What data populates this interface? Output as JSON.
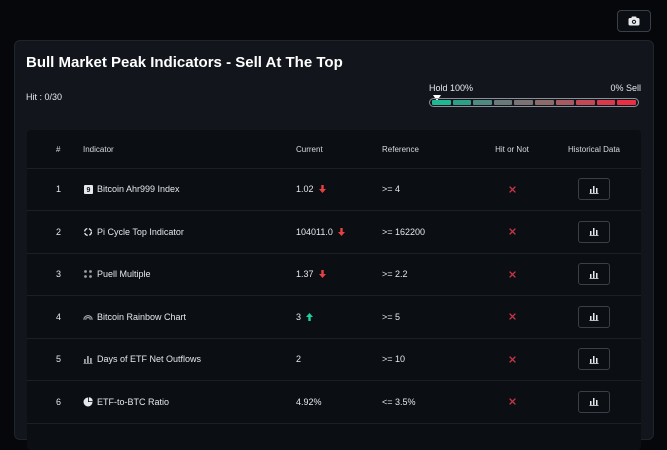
{
  "title": "Bull Market Peak Indicators - Sell At The Top",
  "hit_label": "Hit : 0/30",
  "meter": {
    "left_label": "Hold 100%",
    "right_label": "0% Sell",
    "position_fraction": 0.0,
    "segment_colors": [
      "#1fb892",
      "#2c9f86",
      "#4f8a80",
      "#6a7a7a",
      "#7b7373",
      "#8c6b6b",
      "#a65a62",
      "#c24856",
      "#d83a4b",
      "#ea2f44"
    ]
  },
  "colors": {
    "up": "#1fd1a1",
    "down": "#e84141",
    "hit_x": "#c23645"
  },
  "table": {
    "headers": {
      "num": "#",
      "indicator": "Indicator",
      "current": "Current",
      "reference": "Reference",
      "hit": "Hit or Not",
      "history": "Historical Data"
    },
    "rows": [
      {
        "num": "1",
        "icon": "ahr999-icon",
        "indicator": "Bitcoin Ahr999 Index",
        "current": "1.02",
        "trend": "down",
        "reference": ">= 4",
        "hit": "x-icon"
      },
      {
        "num": "2",
        "icon": "pi-cycle-icon",
        "indicator": "Pi Cycle Top Indicator",
        "current": "104011.0",
        "trend": "down",
        "reference": ">= 162200",
        "hit": "x-icon"
      },
      {
        "num": "3",
        "icon": "puell-icon",
        "indicator": "Puell Multiple",
        "current": "1.37",
        "trend": "down",
        "reference": ">= 2.2",
        "hit": "x-icon"
      },
      {
        "num": "4",
        "icon": "rainbow-icon",
        "indicator": "Bitcoin Rainbow Chart",
        "current": "3",
        "trend": "up",
        "reference": ">= 5",
        "hit": "x-icon"
      },
      {
        "num": "5",
        "icon": "bar-chart-icon",
        "indicator": "Days of ETF Net Outflows",
        "current": "2",
        "trend": "",
        "reference": ">= 10",
        "hit": "x-icon"
      },
      {
        "num": "6",
        "icon": "pie-chart-icon",
        "indicator": "ETF-to-BTC Ratio",
        "current": "4.92%",
        "trend": "",
        "reference": "<= 3.5%",
        "hit": "x-icon"
      }
    ]
  }
}
